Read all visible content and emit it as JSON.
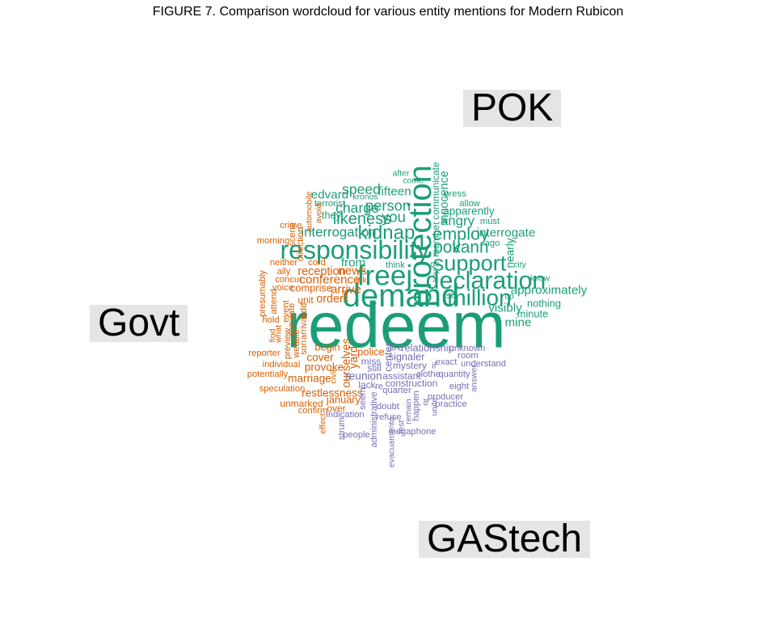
{
  "title": "FIGURE 7. Comparison wordcloud for various entity mentions for Modern Rubicon",
  "groups": {
    "pok": {
      "label": "POK",
      "color": "#1b9e77"
    },
    "govt": {
      "label": "Govt",
      "color": "#d95f02"
    },
    "gastech": {
      "label": "GAStech",
      "color": "#7570b3"
    }
  },
  "chart_data": {
    "type": "wordcloud",
    "title": "FIGURE 7. Comparison wordcloud for various entity mentions for Modern Rubicon",
    "groups": [
      "POK",
      "Govt",
      "GAStech"
    ],
    "words": [
      {
        "text": "redeem",
        "group": "pok",
        "weight": 10
      },
      {
        "text": "demand",
        "group": "pok",
        "weight": 5
      },
      {
        "text": "protection",
        "group": "pok",
        "weight": 5,
        "rotate": true
      },
      {
        "text": "freej",
        "group": "pok",
        "weight": 4.4
      },
      {
        "text": "responsibility",
        "group": "pok",
        "weight": 4
      },
      {
        "text": "declaration",
        "group": "pok",
        "weight": 3.8
      },
      {
        "text": "million",
        "group": "pok",
        "weight": 3.5
      },
      {
        "text": "support",
        "group": "pok",
        "weight": 3.4
      },
      {
        "text": "kidnap",
        "group": "pok",
        "weight": 3
      },
      {
        "text": "employ",
        "group": "pok",
        "weight": 2.7
      },
      {
        "text": "pok",
        "group": "pok",
        "weight": 2.6
      },
      {
        "text": "vann",
        "group": "pok",
        "weight": 2.6
      },
      {
        "text": "likeness",
        "group": "pok",
        "weight": 2.5
      },
      {
        "text": "person",
        "group": "pok",
        "weight": 2.3
      },
      {
        "text": "you",
        "group": "pok",
        "weight": 2.3
      },
      {
        "text": "charge",
        "group": "pok",
        "weight": 2.2
      },
      {
        "text": "speed",
        "group": "pok",
        "weight": 2.2
      },
      {
        "text": "interrogation",
        "group": "pok",
        "weight": 2.1
      },
      {
        "text": "angry",
        "group": "pok",
        "weight": 2.1
      },
      {
        "text": "edvard",
        "group": "pok",
        "weight": 1.9
      },
      {
        "text": "fifteen",
        "group": "pok",
        "weight": 1.9
      },
      {
        "text": "interrogate",
        "group": "pok",
        "weight": 1.9
      },
      {
        "text": "approximately",
        "group": "pok",
        "weight": 1.9
      },
      {
        "text": "visibly",
        "group": "pok",
        "weight": 1.9
      },
      {
        "text": "mine",
        "group": "pok",
        "weight": 1.9
      },
      {
        "text": "apparently",
        "group": "pok",
        "weight": 1.7
      },
      {
        "text": "innocence",
        "group": "pok",
        "weight": 1.8,
        "rotate": true
      },
      {
        "text": "communicate",
        "group": "pok",
        "weight": 1.5,
        "rotate": true
      },
      {
        "text": "member",
        "group": "pok",
        "weight": 1.5,
        "rotate": true
      },
      {
        "text": "nearly",
        "group": "pok",
        "weight": 1.7,
        "rotate": true
      },
      {
        "text": "nothing",
        "group": "pok",
        "weight": 1.6
      },
      {
        "text": "minute",
        "group": "pok",
        "weight": 1.6
      },
      {
        "text": "from",
        "group": "pok",
        "weight": 1.9
      },
      {
        "text": "press",
        "group": "pok",
        "weight": 1.4
      },
      {
        "text": "allow",
        "group": "pok",
        "weight": 1.4
      },
      {
        "text": "must",
        "group": "pok",
        "weight": 1.4
      },
      {
        "text": "ago",
        "group": "pok",
        "weight": 1.4
      },
      {
        "text": "city",
        "group": "pok",
        "weight": 1.3
      },
      {
        "text": "know",
        "group": "pok",
        "weight": 1.3
      },
      {
        "text": "up",
        "group": "pok",
        "weight": 1.3
      },
      {
        "text": "its",
        "group": "pok",
        "weight": 1.3,
        "rotate": true
      },
      {
        "text": "six",
        "group": "pok",
        "weight": 1.4
      },
      {
        "text": "after",
        "group": "pok",
        "weight": 1.3
      },
      {
        "text": "come",
        "group": "pok",
        "weight": 1.3
      },
      {
        "text": "kronos",
        "group": "pok",
        "weight": 1.3
      },
      {
        "text": "they",
        "group": "pok",
        "weight": 1.6
      },
      {
        "text": "terrorist",
        "group": "pok",
        "weight": 1.4
      },
      {
        "text": "think",
        "group": "pok",
        "weight": 1.4
      },
      {
        "text": "go",
        "group": "pok",
        "weight": 1.3
      },
      {
        "text": "any",
        "group": "pok",
        "weight": 1.3,
        "rotate": true
      },
      {
        "text": "conference",
        "group": "govt",
        "weight": 1.9
      },
      {
        "text": "reception",
        "group": "govt",
        "weight": 1.8
      },
      {
        "text": "news",
        "group": "govt",
        "weight": 1.9
      },
      {
        "text": "arrive",
        "group": "govt",
        "weight": 1.9
      },
      {
        "text": "comprise",
        "group": "govt",
        "weight": 1.6
      },
      {
        "text": "order",
        "group": "govt",
        "weight": 1.8
      },
      {
        "text": "unit",
        "group": "govt",
        "weight": 1.5
      },
      {
        "text": "cord",
        "group": "govt",
        "weight": 1.4
      },
      {
        "text": "concur",
        "group": "govt",
        "weight": 1.4
      },
      {
        "text": "voice",
        "group": "govt",
        "weight": 1.4
      },
      {
        "text": "neither",
        "group": "govt",
        "weight": 1.4
      },
      {
        "text": "ally",
        "group": "govt",
        "weight": 1.4
      },
      {
        "text": "morning",
        "group": "govt",
        "weight": 1.4
      },
      {
        "text": "crime",
        "group": "govt",
        "weight": 1.4
      },
      {
        "text": "scene",
        "group": "govt",
        "weight": 1.4,
        "rotate": true
      },
      {
        "text": "direction",
        "group": "govt",
        "weight": 1.4,
        "rotate": true
      },
      {
        "text": "automobile",
        "group": "govt",
        "weight": 1.3,
        "rotate": true
      },
      {
        "text": "avoid",
        "group": "govt",
        "weight": 1.3,
        "rotate": true
      },
      {
        "text": "presumably",
        "group": "govt",
        "weight": 1.4,
        "rotate": true
      },
      {
        "text": "attend",
        "group": "govt",
        "weight": 1.4,
        "rotate": true
      },
      {
        "text": "event",
        "group": "govt",
        "weight": 1.4,
        "rotate": true
      },
      {
        "text": "add",
        "group": "govt",
        "weight": 1.4,
        "rotate": true
      },
      {
        "text": "regulate",
        "group": "govt",
        "weight": 1.4,
        "rotate": true
      },
      {
        "text": "arrival",
        "group": "govt",
        "weight": 1.4,
        "rotate": true
      },
      {
        "text": "hold",
        "group": "govt",
        "weight": 1.4
      },
      {
        "text": "find",
        "group": "govt",
        "weight": 1.3,
        "rotate": true
      },
      {
        "text": "what",
        "group": "govt",
        "weight": 1.3,
        "rotate": true
      },
      {
        "text": "preview",
        "group": "govt",
        "weight": 1.4,
        "rotate": true
      },
      {
        "text": "weable",
        "group": "govt",
        "weight": 1.4,
        "rotate": true
      },
      {
        "text": "son",
        "group": "govt",
        "weight": 1.4,
        "rotate": true
      },
      {
        "text": "begin",
        "group": "govt",
        "weight": 1.6
      },
      {
        "text": "cover",
        "group": "govt",
        "weight": 1.7
      },
      {
        "text": "provoke",
        "group": "govt",
        "weight": 1.7
      },
      {
        "text": "reporter",
        "group": "govt",
        "weight": 1.4
      },
      {
        "text": "individual",
        "group": "govt",
        "weight": 1.4
      },
      {
        "text": "potentially",
        "group": "govt",
        "weight": 1.4
      },
      {
        "text": "marriage",
        "group": "govt",
        "weight": 1.7
      },
      {
        "text": "speculation",
        "group": "govt",
        "weight": 1.4
      },
      {
        "text": "restlessness",
        "group": "govt",
        "weight": 1.7
      },
      {
        "text": "january",
        "group": "govt",
        "weight": 1.6
      },
      {
        "text": "unmarked",
        "group": "govt",
        "weight": 1.5
      },
      {
        "text": "over",
        "group": "govt",
        "weight": 1.5
      },
      {
        "text": "confirm",
        "group": "govt",
        "weight": 1.4
      },
      {
        "text": "effect",
        "group": "govt",
        "weight": 1.3,
        "rotate": true
      },
      {
        "text": "ourselves",
        "group": "govt",
        "weight": 1.8,
        "rotate": true
      },
      {
        "text": "yard",
        "group": "govt",
        "weight": 1.8,
        "rotate": true
      },
      {
        "text": "police",
        "group": "govt",
        "weight": 1.6
      },
      {
        "text": "civil",
        "group": "govt",
        "weight": 1.3,
        "rotate": true
      },
      {
        "text": "ink",
        "group": "govt",
        "weight": 1.3
      },
      {
        "text": "will",
        "group": "govt",
        "weight": 1.3,
        "rotate": true
      },
      {
        "text": "fire",
        "group": "gastech",
        "weight": 1.6
      },
      {
        "text": "relationship",
        "group": "gastech",
        "weight": 1.6
      },
      {
        "text": "unknown",
        "group": "gastech",
        "weight": 1.4
      },
      {
        "text": "center",
        "group": "gastech",
        "weight": 1.6,
        "rotate": true
      },
      {
        "text": "signaler",
        "group": "gastech",
        "weight": 1.6
      },
      {
        "text": "room",
        "group": "gastech",
        "weight": 1.4
      },
      {
        "text": "miss",
        "group": "gastech",
        "weight": 1.5
      },
      {
        "text": "mystery",
        "group": "gastech",
        "weight": 1.5
      },
      {
        "text": "exact",
        "group": "gastech",
        "weight": 1.4
      },
      {
        "text": "understand",
        "group": "gastech",
        "weight": 1.4
      },
      {
        "text": "still",
        "group": "gastech",
        "weight": 1.5
      },
      {
        "text": "if",
        "group": "gastech",
        "weight": 1.3
      },
      {
        "text": "reunion",
        "group": "gastech",
        "weight": 1.7
      },
      {
        "text": "assistant",
        "group": "gastech",
        "weight": 1.5
      },
      {
        "text": "clothe",
        "group": "gastech",
        "weight": 1.4
      },
      {
        "text": "quantity",
        "group": "gastech",
        "weight": 1.4
      },
      {
        "text": "answer",
        "group": "gastech",
        "weight": 1.3,
        "rotate": true
      },
      {
        "text": "lack",
        "group": "gastech",
        "weight": 1.5
      },
      {
        "text": "re",
        "group": "gastech",
        "weight": 1.4
      },
      {
        "text": "construction",
        "group": "gastech",
        "weight": 1.5
      },
      {
        "text": "eight",
        "group": "gastech",
        "weight": 1.4
      },
      {
        "text": "quarter",
        "group": "gastech",
        "weight": 1.4
      },
      {
        "text": "producer",
        "group": "gastech",
        "weight": 1.4
      },
      {
        "text": "practice",
        "group": "gastech",
        "weight": 1.4
      },
      {
        "text": "seem",
        "group": "gastech",
        "weight": 1.4,
        "rotate": true
      },
      {
        "text": "happen",
        "group": "gastech",
        "weight": 1.4,
        "rotate": true
      },
      {
        "text": "or",
        "group": "gastech",
        "weight": 1.3,
        "rotate": true
      },
      {
        "text": "unite",
        "group": "gastech",
        "weight": 1.3,
        "rotate": true
      },
      {
        "text": "remain",
        "group": "gastech",
        "weight": 1.3,
        "rotate": true
      },
      {
        "text": "doubt",
        "group": "gastech",
        "weight": 1.4
      },
      {
        "text": "refuse",
        "group": "gastech",
        "weight": 1.4
      },
      {
        "text": "administrative",
        "group": "gastech",
        "weight": 1.4,
        "rotate": true
      },
      {
        "text": "indication",
        "group": "gastech",
        "weight": 1.4
      },
      {
        "text": "strum",
        "group": "gastech",
        "weight": 1.4,
        "rotate": true
      },
      {
        "text": "people",
        "group": "gastech",
        "weight": 1.4
      },
      {
        "text": "evacuamento",
        "group": "gastech",
        "weight": 1.3,
        "rotate": true
      },
      {
        "text": "megaphone",
        "group": "gastech",
        "weight": 1.4
      },
      {
        "text": "test",
        "group": "gastech",
        "weight": 1.3,
        "rotate": true
      }
    ]
  }
}
